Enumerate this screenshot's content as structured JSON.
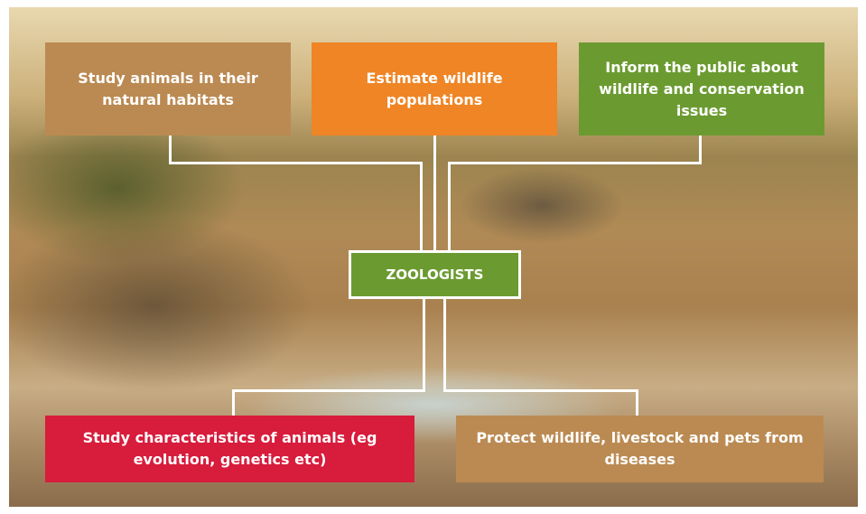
{
  "center": {
    "label": "ZOOLOGISTS"
  },
  "nodes": [
    {
      "label": "Study animals in their natural habitats"
    },
    {
      "label": "Estimate wildlife populations"
    },
    {
      "label": "Inform the public about wildlife and conservation issues"
    },
    {
      "label": "Study characteristics of animals (eg evolution, genetics etc)"
    },
    {
      "label": "Protect wildlife, livestock and pets from diseases"
    }
  ]
}
